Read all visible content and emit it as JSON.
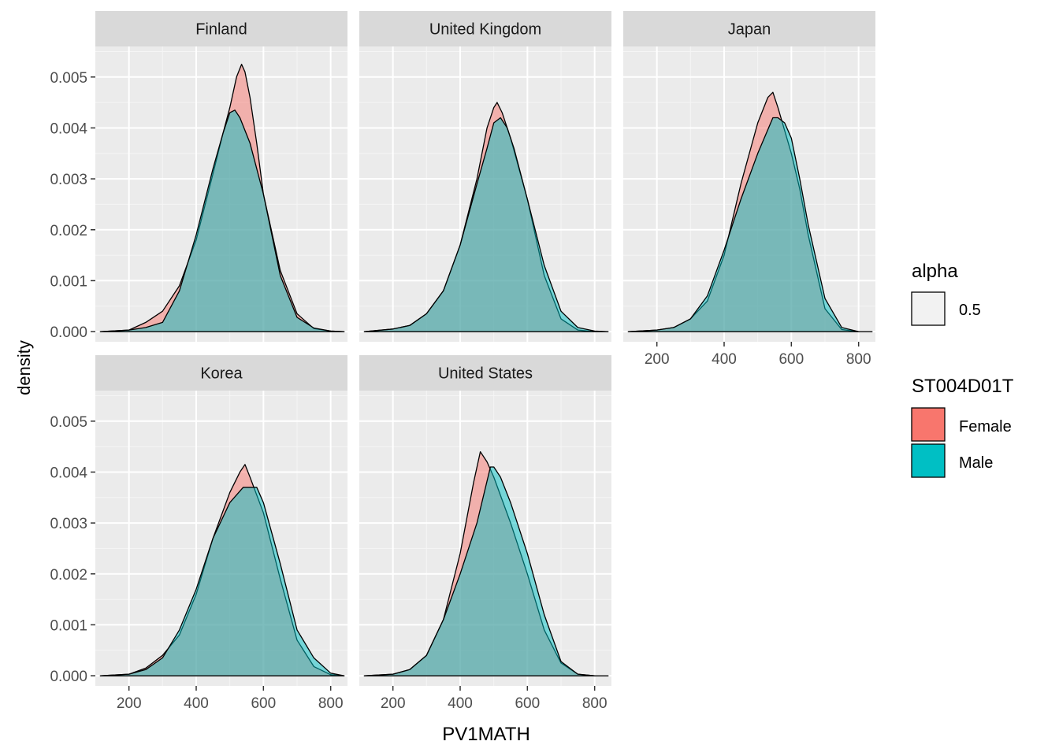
{
  "chart_data": {
    "type": "area",
    "title": "",
    "xlabel": "PV1MATH",
    "ylabel": "density",
    "xlim": [
      100,
      850
    ],
    "ylim": [
      -0.0002,
      0.0056
    ],
    "x_ticks": [
      200,
      400,
      600,
      800
    ],
    "y_ticks": [
      0.0,
      0.001,
      0.002,
      0.003,
      0.004,
      0.005
    ],
    "y_tick_labels": [
      "0.000",
      "0.001",
      "0.002",
      "0.003",
      "0.004",
      "0.005"
    ],
    "grid": true,
    "legend_position": "right",
    "legends": [
      {
        "title": "alpha",
        "entries": [
          {
            "label": "0.5",
            "color": "#f2f2f2"
          }
        ]
      },
      {
        "title": "ST004D01T",
        "entries": [
          {
            "label": "Female",
            "color": "#F8766D"
          },
          {
            "label": "Male",
            "color": "#00BFC4"
          }
        ]
      }
    ],
    "series_colors": {
      "Female": "#F8766D",
      "Male": "#00BFC4"
    },
    "facets": [
      {
        "name": "Finland",
        "series": [
          {
            "name": "Female",
            "x": [
              115,
              200,
              250,
              300,
              350,
              400,
              450,
              480,
              500,
              520,
              535,
              545,
              560,
              580,
              600,
              650,
              700,
              750,
              800,
              840
            ],
            "y": [
              0.0,
              3e-05,
              0.00018,
              0.0004,
              0.0009,
              0.0018,
              0.0031,
              0.0039,
              0.0044,
              0.005,
              0.00525,
              0.0051,
              0.0046,
              0.0037,
              0.0027,
              0.0012,
              0.00035,
              6e-05,
              1e-05,
              0.0
            ]
          },
          {
            "name": "Male",
            "x": [
              115,
              200,
              250,
              300,
              350,
              400,
              450,
              480,
              500,
              515,
              530,
              560,
              600,
              650,
              700,
              750,
              800,
              840
            ],
            "y": [
              0.0,
              3e-05,
              8e-05,
              0.00018,
              0.0008,
              0.0019,
              0.0032,
              0.0039,
              0.0043,
              0.00435,
              0.0042,
              0.0037,
              0.0027,
              0.0011,
              0.00028,
              7e-05,
              1e-05,
              0.0
            ]
          }
        ]
      },
      {
        "name": "United Kingdom",
        "series": [
          {
            "name": "Female",
            "x": [
              115,
              200,
              250,
              300,
              350,
              400,
              450,
              480,
              500,
              510,
              525,
              550,
              600,
              650,
              700,
              750,
              800,
              840
            ],
            "y": [
              0.0,
              5e-05,
              0.00012,
              0.00035,
              0.0008,
              0.0017,
              0.003,
              0.004,
              0.0044,
              0.0045,
              0.0043,
              0.0038,
              0.0026,
              0.0011,
              0.00025,
              3e-05,
              0.0,
              0.0
            ]
          },
          {
            "name": "Male",
            "x": [
              115,
              200,
              250,
              300,
              350,
              400,
              450,
              480,
              500,
              520,
              540,
              560,
              600,
              650,
              700,
              750,
              800,
              840
            ],
            "y": [
              0.0,
              5e-05,
              0.00012,
              0.00035,
              0.0008,
              0.0017,
              0.0029,
              0.0036,
              0.0041,
              0.0042,
              0.004,
              0.0036,
              0.0026,
              0.0013,
              0.0004,
              8e-05,
              1e-05,
              0.0
            ]
          }
        ]
      },
      {
        "name": "Japan",
        "series": [
          {
            "name": "Female",
            "x": [
              115,
              200,
              250,
              300,
              350,
              400,
              450,
              500,
              530,
              545,
              560,
              600,
              625,
              650,
              700,
              750,
              800,
              840
            ],
            "y": [
              0.0,
              3e-05,
              8e-05,
              0.00025,
              0.0006,
              0.0015,
              0.0029,
              0.0041,
              0.0046,
              0.0047,
              0.0044,
              0.0035,
              0.0028,
              0.0019,
              0.00045,
              4e-05,
              0.0,
              0.0
            ]
          },
          {
            "name": "Male",
            "x": [
              115,
              200,
              250,
              300,
              350,
              400,
              450,
              500,
              545,
              560,
              580,
              600,
              625,
              650,
              700,
              750,
              800,
              840
            ],
            "y": [
              0.0,
              3e-05,
              8e-05,
              0.00025,
              0.0007,
              0.0016,
              0.0026,
              0.0035,
              0.0042,
              0.0042,
              0.0041,
              0.0038,
              0.003,
              0.0021,
              0.00065,
              8e-05,
              0.0,
              0.0
            ]
          }
        ]
      },
      {
        "name": "Korea",
        "series": [
          {
            "name": "Female",
            "x": [
              115,
              200,
              250,
              300,
              350,
              400,
              450,
              500,
              530,
              545,
              560,
              600,
              650,
              700,
              750,
              800,
              840
            ],
            "y": [
              0.0,
              3e-05,
              0.00015,
              0.0004,
              0.0008,
              0.0016,
              0.0027,
              0.0036,
              0.004,
              0.00415,
              0.0039,
              0.0032,
              0.0019,
              0.0007,
              0.00018,
              2e-05,
              0.0
            ]
          },
          {
            "name": "Male",
            "x": [
              115,
              200,
              250,
              300,
              350,
              400,
              450,
              500,
              540,
              580,
              600,
              650,
              700,
              750,
              800,
              840
            ],
            "y": [
              0.0,
              3e-05,
              0.00012,
              0.00035,
              0.0009,
              0.0017,
              0.0027,
              0.0034,
              0.0037,
              0.0037,
              0.0034,
              0.0022,
              0.0009,
              0.00035,
              5e-05,
              0.0
            ]
          }
        ]
      },
      {
        "name": "United States",
        "series": [
          {
            "name": "Female",
            "x": [
              115,
              200,
              250,
              300,
              350,
              400,
              440,
              460,
              480,
              500,
              550,
              600,
              650,
              700,
              750,
              800,
              840
            ],
            "y": [
              0.0,
              3e-05,
              0.00012,
              0.0004,
              0.0011,
              0.0024,
              0.0038,
              0.0044,
              0.0042,
              0.0039,
              0.003,
              0.002,
              0.0009,
              0.00025,
              3e-05,
              0.0,
              0.0
            ]
          },
          {
            "name": "Male",
            "x": [
              115,
              200,
              250,
              300,
              350,
              400,
              450,
              490,
              500,
              520,
              550,
              600,
              650,
              700,
              750,
              800,
              840
            ],
            "y": [
              0.0,
              3e-05,
              0.00012,
              0.0004,
              0.0011,
              0.002,
              0.003,
              0.0041,
              0.0041,
              0.0039,
              0.0034,
              0.0024,
              0.0012,
              0.00028,
              3e-05,
              0.0,
              0.0
            ]
          }
        ]
      }
    ]
  }
}
